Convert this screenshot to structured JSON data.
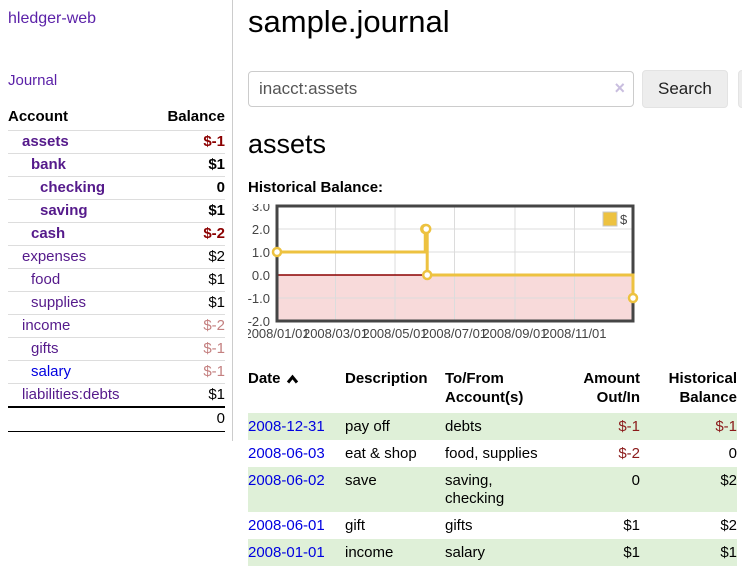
{
  "app_title": "hledger-web",
  "sidebar": {
    "journal_link": "Journal",
    "account_header": "Account",
    "balance_header": "Balance",
    "accounts": [
      {
        "name": "assets",
        "balance": "$-1"
      },
      {
        "name": "bank",
        "balance": "$1"
      },
      {
        "name": "checking",
        "balance": "0"
      },
      {
        "name": "saving",
        "balance": "$1"
      },
      {
        "name": "cash",
        "balance": "$-2"
      },
      {
        "name": "expenses",
        "balance": "$2"
      },
      {
        "name": "food",
        "balance": "$1"
      },
      {
        "name": "supplies",
        "balance": "$1"
      },
      {
        "name": "income",
        "balance": "$-2"
      },
      {
        "name": "gifts",
        "balance": "$-1"
      },
      {
        "name": "salary",
        "balance": "$-1"
      },
      {
        "name": "liabilities:debts",
        "balance": "$1"
      }
    ],
    "total_balance": "0"
  },
  "main": {
    "title": "sample.journal",
    "search": {
      "value": "inacct:assets",
      "clear": "×",
      "search_button": "Search",
      "help_button": "?"
    },
    "account_heading": "assets",
    "chart_title": "Historical Balance:"
  },
  "register": {
    "headers": {
      "date": "Date",
      "description": "Description",
      "tofrom_line1": "To/From",
      "tofrom_line2": "Account(s)",
      "amount_line1": "Amount",
      "amount_line2": "Out/In",
      "balance_line1": "Historical",
      "balance_line2": "Balance"
    },
    "rows": [
      {
        "date": "2008-12-31",
        "description": "pay off",
        "accounts": "debts",
        "amount": "$-1",
        "balance": "$-1"
      },
      {
        "date": "2008-06-03",
        "description": "eat & shop",
        "accounts": "food, supplies",
        "amount": "$-2",
        "balance": "0"
      },
      {
        "date": "2008-06-02",
        "description": "save",
        "accounts": "saving, checking",
        "amount": "0",
        "balance": "$2"
      },
      {
        "date": "2008-06-01",
        "description": "gift",
        "accounts": "gifts",
        "amount": "$1",
        "balance": "$2"
      },
      {
        "date": "2008-01-01",
        "description": "income",
        "accounts": "salary",
        "amount": "$1",
        "balance": "$1"
      }
    ]
  },
  "chart_data": {
    "type": "line",
    "title": "Historical Balance",
    "x_min": "2008-01-01",
    "x_max": "2008-12-31",
    "ylim": [
      -2,
      3
    ],
    "y_ticks": [
      {
        "v": 3,
        "label": "3.0"
      },
      {
        "v": 2,
        "label": "2.0"
      },
      {
        "v": 1,
        "label": "1.0"
      },
      {
        "v": 0,
        "label": "0.0"
      },
      {
        "v": -1,
        "label": "-1.0"
      },
      {
        "v": -2,
        "label": "-2.0"
      }
    ],
    "x_ticks": [
      {
        "date": "2008-01-01",
        "label": "2008/01/01"
      },
      {
        "date": "2008-03-01",
        "label": "2008/03/01"
      },
      {
        "date": "2008-05-01",
        "label": "2008/05/01"
      },
      {
        "date": "2008-07-01",
        "label": "2008/07/01"
      },
      {
        "date": "2008-09-01",
        "label": "2008/09/01"
      },
      {
        "date": "2008-11-01",
        "label": "2008/11/01"
      }
    ],
    "series": [
      {
        "name": "$",
        "color": "#edc240",
        "steps": true,
        "points": [
          [
            "2008-01-01",
            1
          ],
          [
            "2008-06-01",
            2
          ],
          [
            "2008-06-02",
            2
          ],
          [
            "2008-06-03",
            0
          ],
          [
            "2008-12-31",
            -1
          ]
        ]
      }
    ],
    "grid": {
      "gridline_color": "#dcdcdc",
      "border_color": "#454545",
      "negative_region_color": "#f8dada",
      "zero_line_color": "#8b0000",
      "tick_text_color": "#444444"
    },
    "legend": {
      "position": "top-right",
      "label": "$"
    }
  }
}
